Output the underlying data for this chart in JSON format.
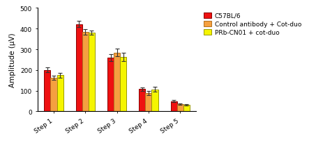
{
  "categories": [
    "Step 1",
    "Step 2",
    "Step 3",
    "Step 4",
    "Step 5"
  ],
  "series": [
    {
      "label": "C57BL/6",
      "color": "#ee1111",
      "edgecolor": "#880000",
      "values": [
        200,
        422,
        260,
        108,
        50
      ],
      "errors": [
        12,
        16,
        18,
        8,
        4
      ]
    },
    {
      "label": "Control antibody + Cot-duo",
      "color": "#f5a040",
      "edgecolor": "#b07020",
      "values": [
        163,
        385,
        285,
        88,
        35
      ],
      "errors": [
        10,
        14,
        20,
        10,
        3
      ]
    },
    {
      "label": "PRb-CN01 + cot-duo",
      "color": "#f5f500",
      "edgecolor": "#999900",
      "values": [
        175,
        381,
        263,
        106,
        32
      ],
      "errors": [
        12,
        10,
        20,
        12,
        3
      ]
    }
  ],
  "ylabel": "Amplitude (μV)",
  "ylim": [
    0,
    500
  ],
  "yticks": [
    0,
    100,
    200,
    300,
    400,
    500
  ],
  "bar_width": 0.2,
  "legend_fontsize": 6.5,
  "tick_fontsize": 6.5,
  "label_fontsize": 7.5,
  "background_color": "#ffffff",
  "capsize": 2
}
